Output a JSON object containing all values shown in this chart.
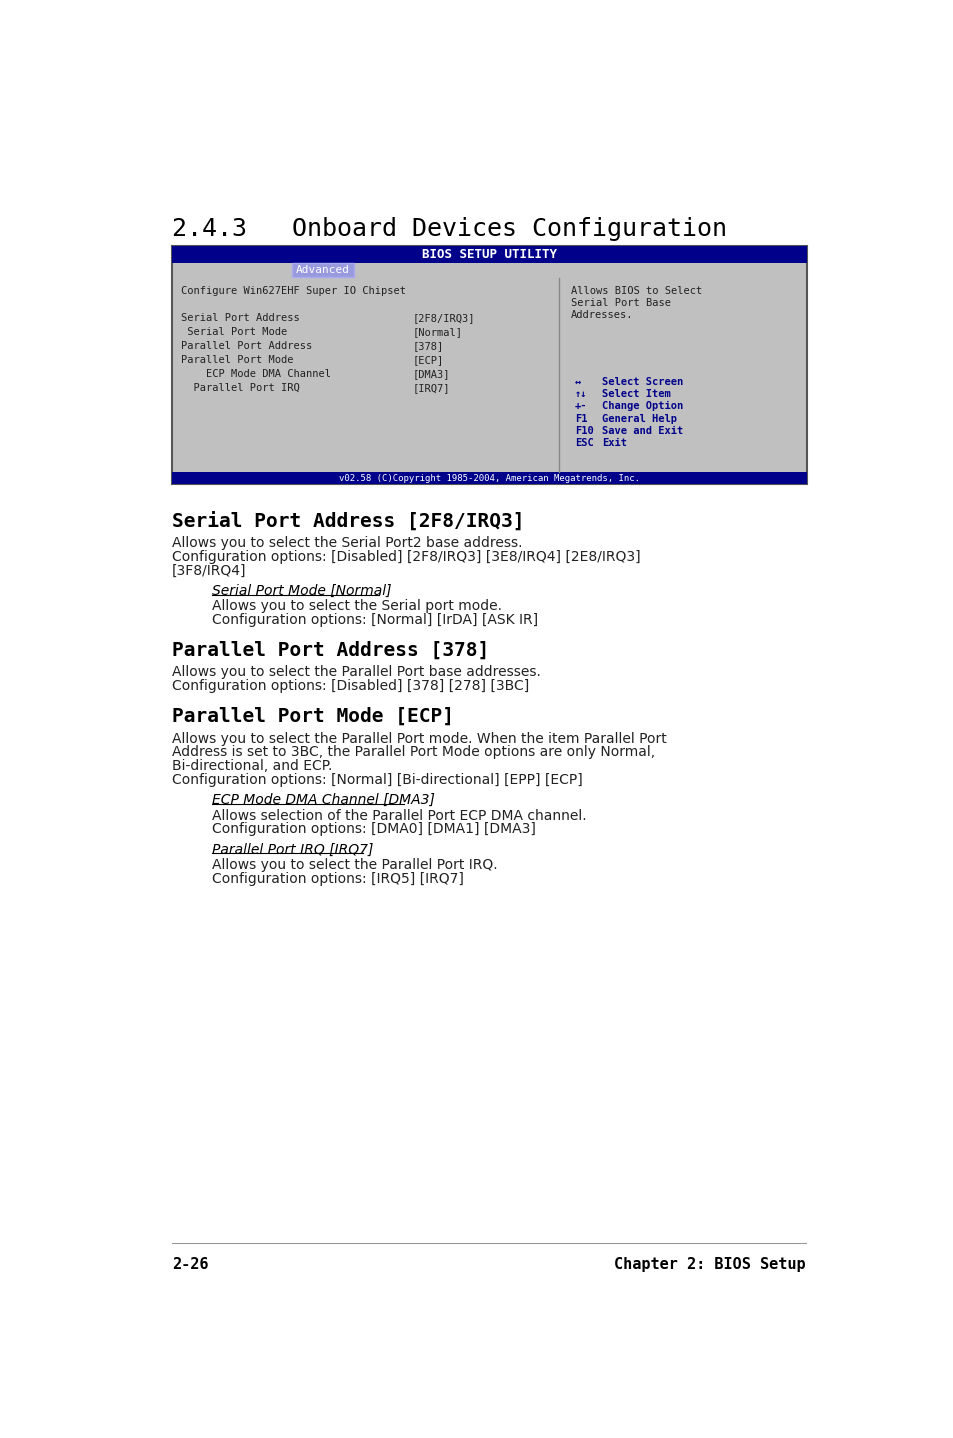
{
  "page_bg": "#ffffff",
  "title": "2.4.3   Onboard Devices Configuration",
  "title_font": 18,
  "title_color": "#000000",
  "bios_header_bg": "#00008B",
  "bios_header_text": "BIOS SETUP UTILITY",
  "bios_tab_text": "Advanced",
  "bios_body_bg": "#c0c0c0",
  "bios_left_items": [
    [
      "Configure Win627EHF Super IO Chipset",
      ""
    ],
    [
      "",
      ""
    ],
    [
      "Serial Port Address",
      "[2F8/IRQ3]"
    ],
    [
      " Serial Port Mode",
      "[Normal]"
    ],
    [
      "Parallel Port Address",
      "[378]"
    ],
    [
      "Parallel Port Mode",
      "[ECP]"
    ],
    [
      "    ECP Mode DMA Channel",
      "[DMA3]"
    ],
    [
      "  Parallel Port IRQ",
      "[IRQ7]"
    ]
  ],
  "bios_right_help": [
    "Allows BIOS to Select",
    "Serial Port Base",
    "Addresses."
  ],
  "bios_nav": [
    [
      "↔",
      "Select Screen"
    ],
    [
      "↑↓",
      "Select Item"
    ],
    [
      "+-",
      "Change Option"
    ],
    [
      "F1",
      "General Help"
    ],
    [
      "F10",
      "Save and Exit"
    ],
    [
      "ESC",
      "Exit"
    ]
  ],
  "bios_footer_text": "v02.58 (C)Copyright 1985-2004, American Megatrends, Inc.",
  "section1_title": "Serial Port Address [2F8/IRQ3]",
  "section1_body": [
    "Allows you to select the Serial Port2 base address.",
    "Configuration options: [Disabled] [2F8/IRQ3] [3E8/IRQ4] [2E8/IRQ3]",
    "[3F8/IRQ4]"
  ],
  "section1_sub_title": "Serial Port Mode [Normal]",
  "section1_sub_body": [
    "Allows you to select the Serial port mode.",
    "Configuration options: [Normal] [IrDA] [ASK IR]"
  ],
  "section2_title": "Parallel Port Address [378]",
  "section2_body": [
    "Allows you to select the Parallel Port base addresses.",
    "Configuration options: [Disabled] [378] [278] [3BC]"
  ],
  "section3_title": "Parallel Port Mode [ECP]",
  "section3_body": [
    "Allows you to select the Parallel Port mode. When the item Parallel Port",
    "Address is set to 3BC, the Parallel Port Mode options are only Normal,",
    "Bi-directional, and ECP.",
    "Configuration options: [Normal] [Bi-directional] [EPP] [ECP]"
  ],
  "section3_sub1_title": "ECP Mode DMA Channel [DMA3]",
  "section3_sub1_body": [
    "Allows selection of the Parallel Port ECP DMA channel.",
    "Configuration options: [DMA0] [DMA1] [DMA3]"
  ],
  "section3_sub2_title": "Parallel Port IRQ [IRQ7]",
  "section3_sub2_body": [
    "Allows you to select the Parallel Port IRQ.",
    "Configuration options: [IRQ5] [IRQ7]"
  ],
  "footer_left": "2-26",
  "footer_right": "Chapter 2: BIOS Setup",
  "footer_line_color": "#999999"
}
